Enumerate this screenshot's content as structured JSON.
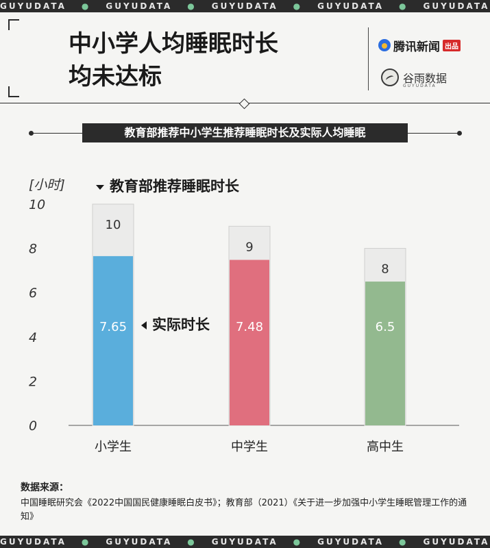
{
  "strip": {
    "text": "GUYUDATA",
    "repeat": 6
  },
  "header": {
    "title_line1": "中小学人均睡眠时长",
    "title_line2": "均未达标",
    "logo_tencent_text": "腾讯新闻",
    "logo_tencent_badge": "出品",
    "logo_guyu_text": "谷雨数据",
    "logo_guyu_sub": "GUYUDATA"
  },
  "subhead": "教育部推荐中小学生推荐睡眠时长及实际人均睡眠",
  "annotations": {
    "recommended": "教育部推荐睡眠时长",
    "actual": "实际时长"
  },
  "chart_data": {
    "type": "bar",
    "ylabel": "[小时]",
    "ylim": [
      0,
      10
    ],
    "yticks": [
      0,
      2,
      4,
      6,
      8,
      10
    ],
    "categories": [
      "小学生",
      "中学生",
      "高中生"
    ],
    "series": [
      {
        "name": "教育部推荐睡眠时长",
        "values": [
          10,
          9,
          8
        ],
        "color": "#ebebea"
      },
      {
        "name": "实际时长",
        "values": [
          7.65,
          7.48,
          6.5
        ],
        "colors": [
          "#5aaedc",
          "#e06f7e",
          "#93b98f"
        ]
      }
    ],
    "value_labels": {
      "recommended": [
        "10",
        "9",
        "8"
      ],
      "actual": [
        "7.65",
        "7.48",
        "6.5"
      ]
    }
  },
  "source": {
    "head": "数据来源：",
    "body": "中国睡眠研究会《2022中国国民健康睡眠白皮书》；教育部（2021）《关于进一步加强中小学生睡眠管理工作的通知》"
  }
}
